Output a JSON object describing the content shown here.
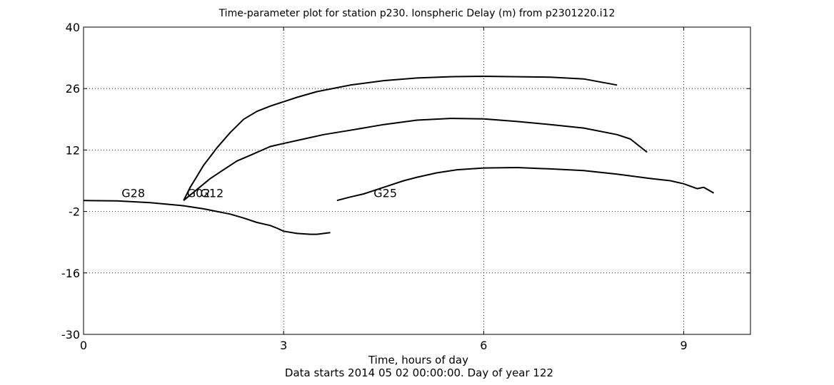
{
  "chart_data": {
    "type": "line",
    "title": "Time-parameter plot for station p230.   Ionspheric Delay (m) from p2301220.i12",
    "xlabel": "Time, hours of day",
    "xlabel_line2": "Data starts 2014 05 02 00:00:00.  Day of year 122",
    "ylabel": "",
    "xlim": [
      0,
      10
    ],
    "ylim": [
      -30,
      40
    ],
    "xticks": [
      0,
      3,
      6,
      9
    ],
    "yticks": [
      -30,
      -16,
      -2,
      12,
      26,
      40
    ],
    "xtick_labels": [
      "0",
      "3",
      "6",
      "9"
    ],
    "ytick_labels": [
      "-30",
      "-16",
      "-2",
      "12",
      "26",
      "40"
    ],
    "grid": true,
    "grid_style": "dotted",
    "line_color": "#000000",
    "series": [
      {
        "name": "G28",
        "label_at": [
          0.57,
          1.3
        ],
        "x": [
          0.0,
          0.5,
          1.0,
          1.5,
          1.8,
          2.0,
          2.2,
          2.4,
          2.6,
          2.8,
          2.9,
          3.0,
          3.2,
          3.4,
          3.5,
          3.7
        ],
        "y": [
          0.5,
          0.4,
          0.0,
          -0.7,
          -1.4,
          -2.0,
          -2.6,
          -3.5,
          -4.5,
          -5.2,
          -5.8,
          -6.5,
          -7.0,
          -7.2,
          -7.2,
          -6.8
        ]
      },
      {
        "name": "G02",
        "label_at": [
          1.55,
          1.3
        ],
        "x": [
          1.5,
          1.6,
          1.7,
          1.8,
          1.9,
          2.0,
          2.2,
          2.4,
          2.6,
          2.8,
          3.0,
          3.2,
          3.5,
          3.8,
          4.0,
          4.5,
          5.0,
          5.5,
          6.0,
          6.5,
          7.0,
          7.5,
          8.0
        ],
        "y": [
          0.5,
          3.5,
          6.0,
          8.5,
          10.5,
          12.5,
          16.0,
          19.0,
          20.8,
          22.0,
          23.0,
          24.0,
          25.3,
          26.2,
          26.8,
          27.8,
          28.4,
          28.7,
          28.8,
          28.7,
          28.6,
          28.2,
          26.8
        ]
      },
      {
        "name": "G12",
        "label_at": [
          1.75,
          1.3
        ],
        "x": [
          1.5,
          1.7,
          1.9,
          2.1,
          2.3,
          2.5,
          2.8,
          3.0,
          3.3,
          3.6,
          4.0,
          4.5,
          5.0,
          5.5,
          6.0,
          6.5,
          7.0,
          7.5,
          8.0,
          8.2,
          8.45
        ],
        "y": [
          0.5,
          3.0,
          5.5,
          7.5,
          9.5,
          10.8,
          12.8,
          13.5,
          14.5,
          15.5,
          16.5,
          17.8,
          18.8,
          19.2,
          19.1,
          18.5,
          17.8,
          17.0,
          15.5,
          14.5,
          11.5
        ]
      },
      {
        "name": "G25",
        "label_at": [
          4.35,
          1.3
        ],
        "x": [
          3.8,
          4.0,
          4.2,
          4.4,
          4.6,
          4.8,
          5.0,
          5.3,
          5.6,
          6.0,
          6.5,
          7.0,
          7.5,
          8.0,
          8.5,
          8.8,
          9.0,
          9.2,
          9.3,
          9.45
        ],
        "y": [
          0.5,
          1.3,
          2.0,
          3.0,
          4.0,
          5.0,
          5.8,
          6.8,
          7.5,
          7.9,
          8.0,
          7.7,
          7.3,
          6.5,
          5.5,
          5.0,
          4.3,
          3.2,
          3.5,
          2.2
        ]
      }
    ]
  }
}
